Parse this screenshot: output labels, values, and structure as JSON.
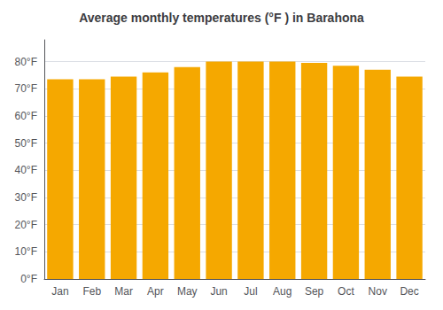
{
  "chart_data": {
    "type": "bar",
    "title": "Average monthly temperatures (°F ) in Barahona",
    "categories": [
      "Jan",
      "Feb",
      "Mar",
      "Apr",
      "May",
      "Jun",
      "Jul",
      "Aug",
      "Sep",
      "Oct",
      "Nov",
      "Dec"
    ],
    "values": [
      73.5,
      73.5,
      74.5,
      76,
      78,
      80,
      80,
      80,
      79.5,
      78.5,
      77,
      74.5
    ],
    "color": "#F5A800",
    "ylim": [
      0,
      88
    ],
    "yticks": [
      {
        "value": 0,
        "label": "0°F"
      },
      {
        "value": 10,
        "label": "10°F"
      },
      {
        "value": 20,
        "label": "20°F"
      },
      {
        "value": 30,
        "label": "30°F"
      },
      {
        "value": 40,
        "label": "40°F"
      },
      {
        "value": 50,
        "label": "50°F"
      },
      {
        "value": 60,
        "label": "60°F"
      },
      {
        "value": 70,
        "label": "70°F"
      },
      {
        "value": 80,
        "label": "80°F"
      }
    ],
    "grid": true
  }
}
